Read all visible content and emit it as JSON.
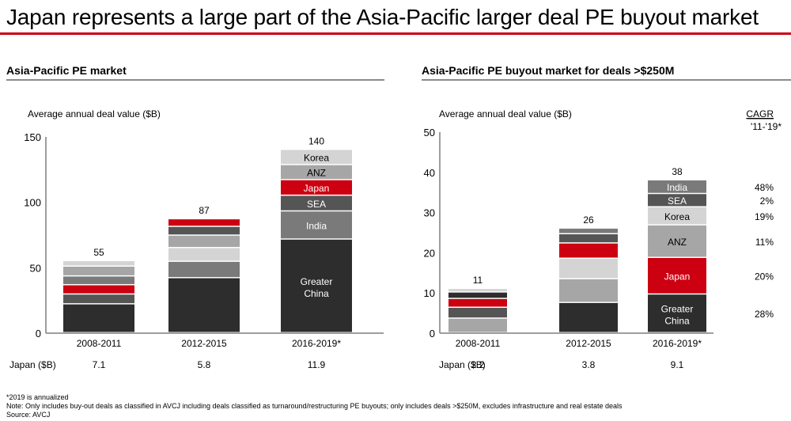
{
  "page_title": "Japan represents a large part of the Asia-Pacific larger deal PE buyout market",
  "colors": {
    "title_rule": "#cc0011",
    "Greater China": "#2d2d2d",
    "India": "#7a7a7a",
    "SEA": "#555555",
    "Japan": "#cc0011",
    "ANZ": "#a6a6a6",
    "Korea": "#d4d4d4"
  },
  "footnotes": {
    "annualized": "*2019 is annualized",
    "note": "Note: Only includes buy-out deals as classified in AVCJ including deals classified as turnaround/restructuring PE buyouts; only includes deals >$250M, excludes infrastructure and real estate deals",
    "source": "Source: AVCJ"
  },
  "chart_data": [
    {
      "type": "bar",
      "stacked": true,
      "section_title": "Asia-Pacific PE market",
      "title": "Average annual deal value ($B)",
      "xlabel": "",
      "ylabel": "Average annual deal value ($B)",
      "ylim": [
        0,
        150
      ],
      "yticks": [
        0,
        50,
        100,
        150
      ],
      "grid": false,
      "categories": [
        "2008-2011",
        "2012-2015",
        "2016-2019*"
      ],
      "totals": [
        "55",
        "87",
        "140"
      ],
      "stack_order": [
        [
          "Greater China",
          "SEA",
          "Japan",
          "India",
          "ANZ",
          "Korea"
        ],
        [
          "Greater China",
          "India",
          "Korea",
          "ANZ",
          "SEA",
          "Japan"
        ],
        [
          "Greater China",
          "India",
          "SEA",
          "Japan",
          "ANZ",
          "Korea"
        ]
      ],
      "series": [
        {
          "name": "Greater China",
          "values": [
            22.0,
            42.0,
            71.5
          ]
        },
        {
          "name": "India",
          "values": [
            6.7,
            12.5,
            21.5
          ]
        },
        {
          "name": "SEA",
          "values": [
            7.5,
            6.7,
            12.0
          ]
        },
        {
          "name": "Japan",
          "values": [
            7.1,
            5.8,
            11.9
          ]
        },
        {
          "name": "ANZ",
          "values": [
            7.5,
            9.5,
            11.5
          ]
        },
        {
          "name": "Korea",
          "values": [
            4.2,
            10.5,
            11.6
          ]
        }
      ],
      "segment_labels_bar": 2,
      "segment_labels": {
        "Greater China": "Greater China",
        "India": "India",
        "SEA": "SEA",
        "Japan": "Japan",
        "ANZ": "ANZ",
        "Korea": "Korea"
      },
      "japan_row": {
        "label": "Japan ($B)",
        "values": [
          "7.1",
          "5.8",
          "11.9"
        ]
      }
    },
    {
      "type": "bar",
      "stacked": true,
      "section_title": "Asia-Pacific PE buyout market for deals >$250M",
      "title": "Average annual deal value ($B)",
      "xlabel": "",
      "ylabel": "Average annual deal value ($B)",
      "ylim": [
        0,
        50
      ],
      "yticks": [
        0,
        10,
        20,
        30,
        40,
        50
      ],
      "grid": false,
      "categories": [
        "2008-2011",
        "2012-2015",
        "2016-2019*"
      ],
      "totals": [
        "11",
        "26",
        "38"
      ],
      "stack_order": [
        [
          "ANZ",
          "SEA",
          "Japan",
          "Greater China",
          "Korea"
        ],
        [
          "Greater China",
          "ANZ",
          "Korea",
          "Japan",
          "SEA",
          "India"
        ],
        [
          "Greater China",
          "Japan",
          "ANZ",
          "Korea",
          "SEA",
          "India"
        ]
      ],
      "series": [
        {
          "name": "Greater China",
          "values": [
            1.6,
            7.5,
            9.6
          ]
        },
        {
          "name": "Japan",
          "values": [
            2.2,
            3.8,
            9.1
          ]
        },
        {
          "name": "ANZ",
          "values": [
            3.6,
            5.9,
            8.1
          ]
        },
        {
          "name": "Korea",
          "values": [
            0.9,
            5.1,
            4.5
          ]
        },
        {
          "name": "SEA",
          "values": [
            2.7,
            2.3,
            3.3
          ]
        },
        {
          "name": "India",
          "values": [
            0.0,
            1.4,
            3.4
          ]
        }
      ],
      "segment_labels_bar": 2,
      "segment_labels": {
        "Greater China": "Greater China",
        "India": "India",
        "SEA": "SEA",
        "Japan": "Japan",
        "ANZ": "ANZ",
        "Korea": "Korea"
      },
      "cagr": {
        "header": "CAGR",
        "period": "'11-'19*",
        "values": {
          "India": "48%",
          "SEA": "2%",
          "Korea": "19%",
          "ANZ": "11%",
          "Japan": "20%",
          "Greater China": "28%"
        }
      },
      "japan_row": {
        "label": "Japan ($B)",
        "values": [
          "2.2",
          "3.8",
          "9.1"
        ]
      }
    }
  ]
}
